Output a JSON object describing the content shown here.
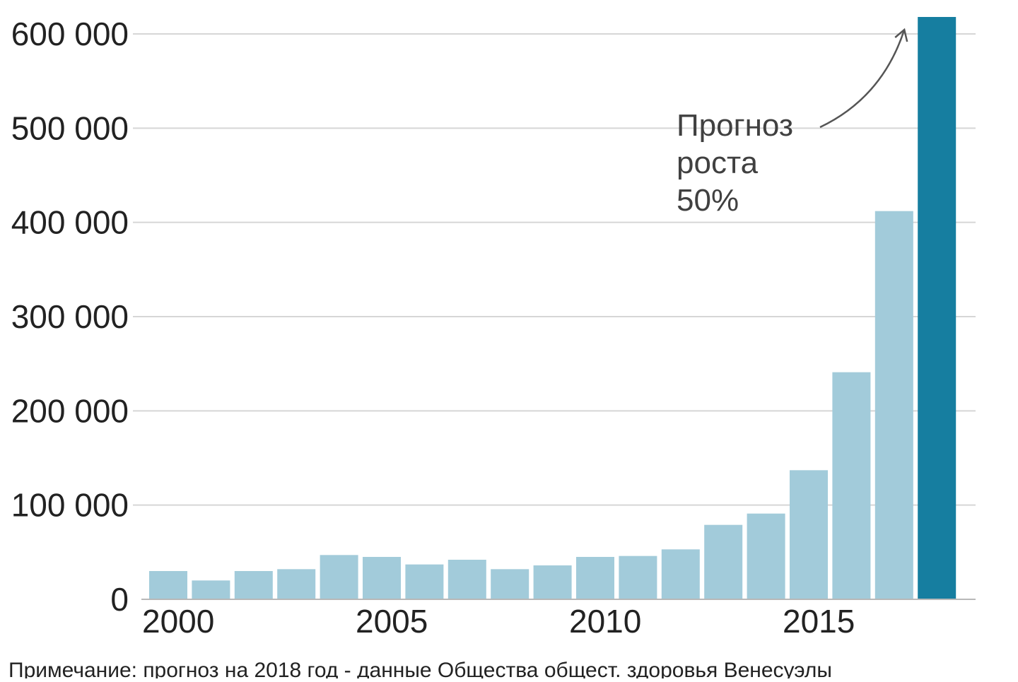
{
  "chart_data": {
    "type": "bar",
    "x": [
      2000,
      2001,
      2002,
      2003,
      2004,
      2005,
      2006,
      2007,
      2008,
      2009,
      2010,
      2011,
      2012,
      2013,
      2014,
      2015,
      2016,
      2017,
      2018
    ],
    "values": [
      30000,
      20000,
      30000,
      32000,
      47000,
      45000,
      37000,
      42000,
      32000,
      36000,
      45000,
      46000,
      53000,
      79000,
      91000,
      137000,
      241000,
      412000,
      618000
    ],
    "highlight_index": 18,
    "ylim": [
      0,
      620000
    ],
    "yticks": [
      0,
      100000,
      200000,
      300000,
      400000,
      500000,
      600000
    ],
    "ytick_labels": [
      "0",
      "100 000",
      "200 000",
      "300 000",
      "400 000",
      "500 000",
      "600 000"
    ],
    "xticks": [
      2000,
      2005,
      2010,
      2015
    ],
    "xtick_labels": [
      "2000",
      "2005",
      "2010",
      "2015"
    ],
    "grid": true,
    "colors": {
      "bar": "#a2cbda",
      "highlight": "#167ea0",
      "grid": "#d6d6d6",
      "axis": "#b8b8b8"
    },
    "annotation": {
      "lines": [
        "Прогноз",
        "роста",
        "50%"
      ],
      "arrow_target_index": 18
    },
    "note": "Примечание: прогноз на 2018 год - данные Общества общест. здоровья Венесуэлы"
  }
}
